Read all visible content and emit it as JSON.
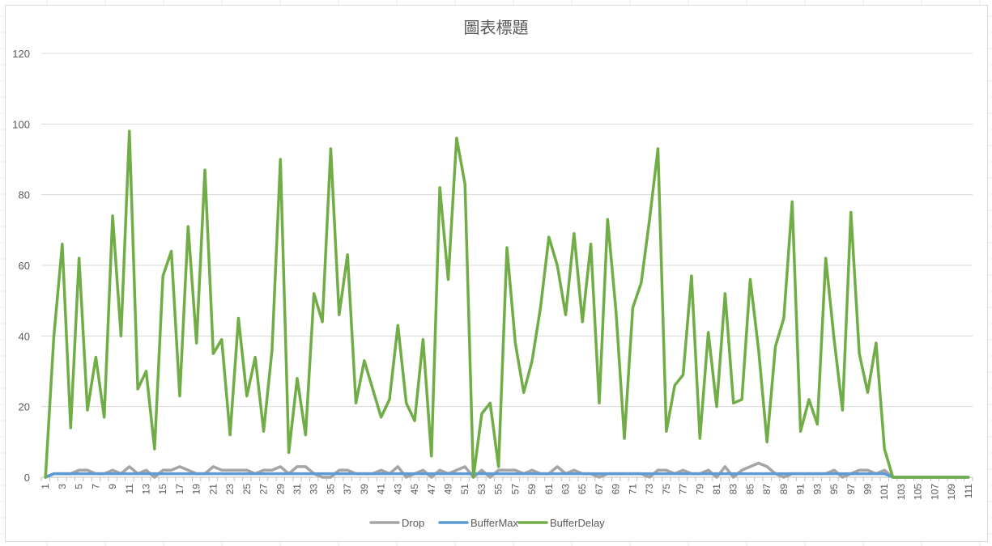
{
  "chart_data": {
    "type": "line",
    "title": "圖表標題",
    "xlabel": "",
    "ylabel": "",
    "ylim": [
      0,
      120
    ],
    "y_ticks": [
      0,
      20,
      40,
      60,
      80,
      100,
      120
    ],
    "x": [
      1,
      2,
      3,
      4,
      5,
      6,
      7,
      8,
      9,
      10,
      11,
      12,
      13,
      14,
      15,
      16,
      17,
      18,
      19,
      20,
      21,
      22,
      23,
      24,
      25,
      26,
      27,
      28,
      29,
      30,
      31,
      32,
      33,
      34,
      35,
      36,
      37,
      38,
      39,
      40,
      41,
      42,
      43,
      44,
      45,
      46,
      47,
      48,
      49,
      50,
      51,
      52,
      53,
      54,
      55,
      56,
      57,
      58,
      59,
      60,
      61,
      62,
      63,
      64,
      65,
      66,
      67,
      68,
      69,
      70,
      71,
      72,
      73,
      74,
      75,
      76,
      77,
      78,
      79,
      80,
      81,
      82,
      83,
      84,
      85,
      86,
      87,
      88,
      89,
      90,
      91,
      92,
      93,
      94,
      95,
      96,
      97,
      98,
      99,
      100,
      101,
      102,
      103,
      104,
      105,
      106,
      107,
      108,
      109,
      110,
      111
    ],
    "x_tick_labels": [
      "1",
      "3",
      "5",
      "7",
      "9",
      "11",
      "13",
      "15",
      "17",
      "19",
      "21",
      "23",
      "25",
      "27",
      "29",
      "31",
      "33",
      "35",
      "37",
      "39",
      "41",
      "43",
      "45",
      "47",
      "49",
      "51",
      "53",
      "55",
      "57",
      "59",
      "61",
      "63",
      "65",
      "67",
      "69",
      "71",
      "73",
      "75",
      "77",
      "79",
      "81",
      "83",
      "85",
      "87",
      "89",
      "91",
      "93",
      "95",
      "97",
      "99",
      "101",
      "103",
      "105",
      "107",
      "109",
      "111"
    ],
    "grid": true,
    "legend_position": "bottom",
    "series": [
      {
        "name": "Drop",
        "color": "#a5a5a5",
        "values": [
          0,
          1,
          1,
          1,
          2,
          2,
          1,
          1,
          2,
          1,
          3,
          1,
          2,
          0,
          2,
          2,
          3,
          2,
          1,
          1,
          3,
          2,
          2,
          2,
          2,
          1,
          2,
          2,
          3,
          1,
          3,
          3,
          1,
          0,
          0,
          2,
          2,
          1,
          1,
          1,
          2,
          1,
          3,
          0,
          1,
          2,
          0,
          2,
          1,
          2,
          3,
          0,
          2,
          0,
          2,
          2,
          2,
          1,
          2,
          1,
          1,
          3,
          1,
          2,
          1,
          1,
          0,
          1,
          1,
          1,
          1,
          1,
          0,
          2,
          2,
          1,
          2,
          1,
          1,
          2,
          0,
          3,
          0,
          2,
          3,
          4,
          3,
          1,
          0,
          1,
          1,
          1,
          1,
          1,
          2,
          0,
          1,
          2,
          2,
          1,
          2,
          0,
          0,
          0,
          0,
          0,
          0,
          0,
          0,
          0,
          0
        ]
      },
      {
        "name": "BufferMax",
        "color": "#5b9bd5",
        "values": [
          0,
          1,
          1,
          1,
          1,
          1,
          1,
          1,
          1,
          1,
          1,
          1,
          1,
          1,
          1,
          1,
          1,
          1,
          1,
          1,
          1,
          1,
          1,
          1,
          1,
          1,
          1,
          1,
          1,
          1,
          1,
          1,
          1,
          1,
          1,
          1,
          1,
          1,
          1,
          1,
          1,
          1,
          1,
          1,
          1,
          1,
          1,
          1,
          1,
          1,
          1,
          1,
          1,
          1,
          1,
          1,
          1,
          1,
          1,
          1,
          1,
          1,
          1,
          1,
          1,
          1,
          1,
          1,
          1,
          1,
          1,
          1,
          1,
          1,
          1,
          1,
          1,
          1,
          1,
          1,
          1,
          1,
          1,
          1,
          1,
          1,
          1,
          1,
          1,
          1,
          1,
          1,
          1,
          1,
          1,
          1,
          1,
          1,
          1,
          1,
          1,
          0,
          0,
          0,
          0,
          0,
          0,
          0,
          0,
          0,
          0
        ]
      },
      {
        "name": "BufferDelay",
        "color": "#70ad47",
        "values": [
          0,
          40,
          66,
          14,
          62,
          19,
          34,
          17,
          74,
          40,
          98,
          25,
          30,
          8,
          57,
          64,
          23,
          71,
          38,
          87,
          35,
          39,
          12,
          45,
          23,
          34,
          13,
          36,
          90,
          7,
          28,
          12,
          52,
          44,
          93,
          46,
          63,
          21,
          33,
          25,
          17,
          22,
          43,
          21,
          16,
          39,
          6,
          82,
          56,
          96,
          83,
          0,
          18,
          21,
          3,
          65,
          38,
          24,
          33,
          48,
          68,
          60,
          46,
          69,
          44,
          66,
          21,
          73,
          47,
          11,
          48,
          55,
          73,
          93,
          13,
          26,
          29,
          57,
          11,
          41,
          20,
          52,
          21,
          22,
          56,
          36,
          10,
          37,
          45,
          78,
          13,
          22,
          15,
          62,
          39,
          19,
          75,
          35,
          24,
          38,
          8,
          0,
          0,
          0,
          0,
          0,
          0,
          0,
          0,
          0,
          0
        ]
      }
    ]
  }
}
